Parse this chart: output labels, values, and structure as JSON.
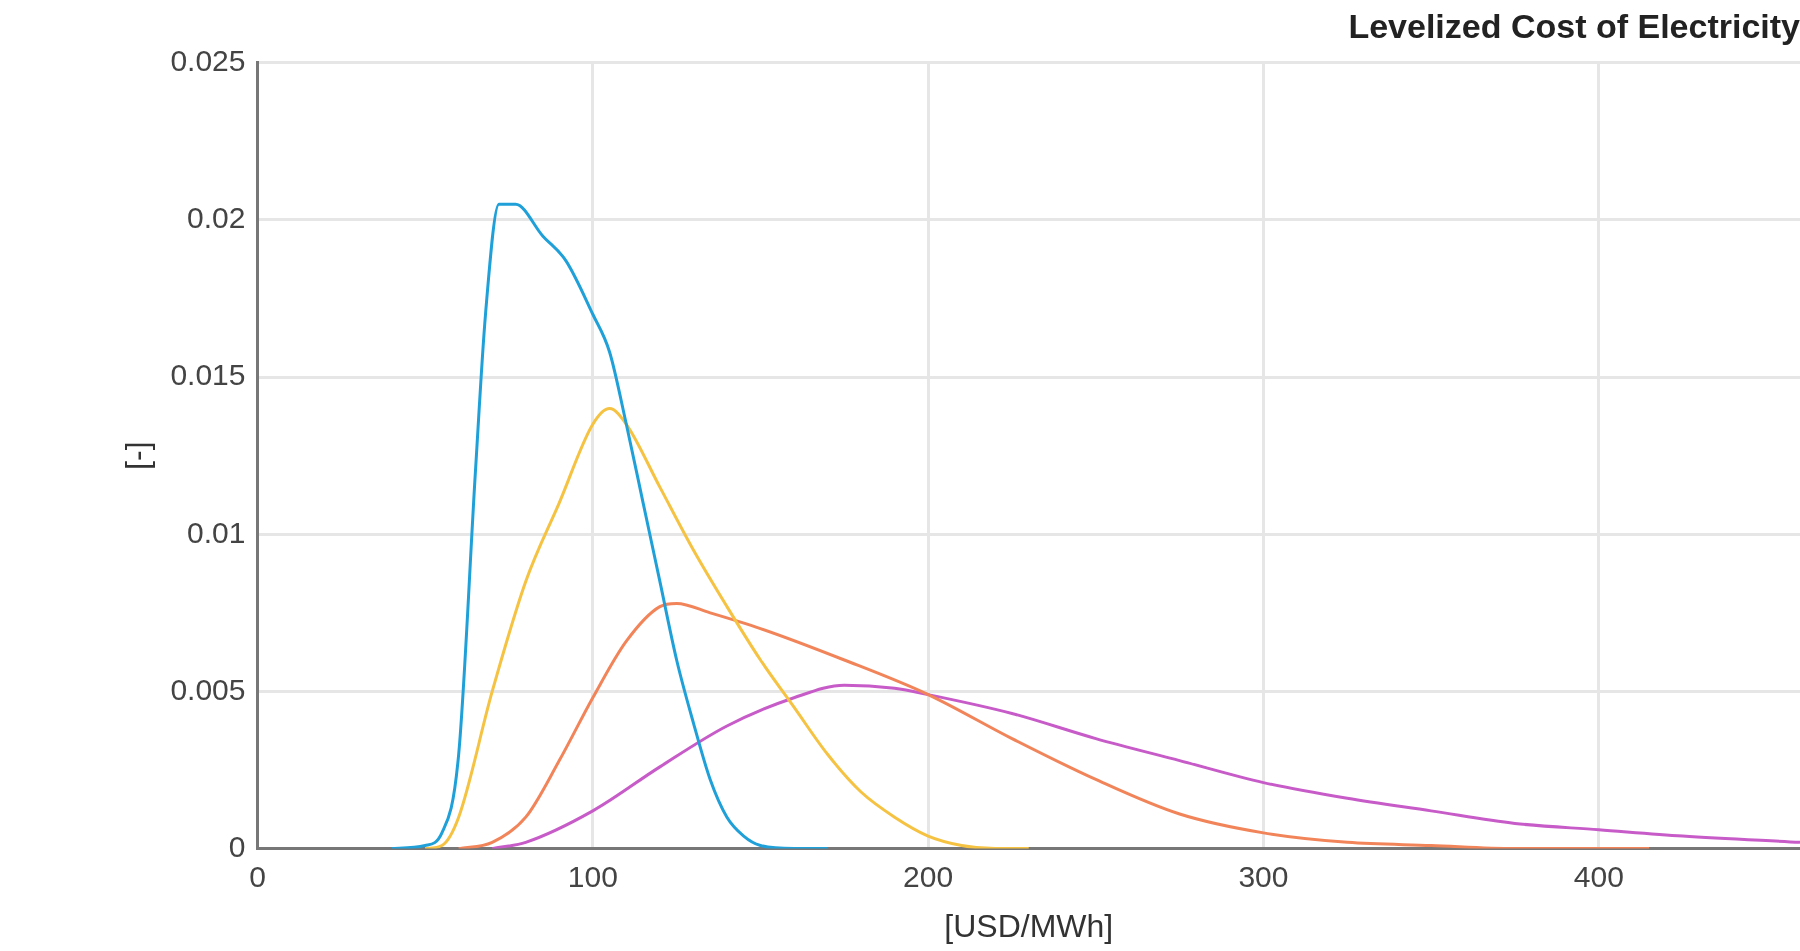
{
  "chart_data": {
    "type": "line",
    "title": "Levelized Cost of Electricity",
    "xlabel": "[USD/MWh]",
    "ylabel": "[-]",
    "xlim": [
      0,
      460
    ],
    "xticks": [
      0,
      100,
      200,
      300,
      400
    ],
    "ylim": [
      0,
      0.025
    ],
    "yticks": [
      0,
      0.005,
      0.01,
      0.015,
      0.02,
      0.025
    ],
    "grid": true,
    "legend": false,
    "marker": "none",
    "line_style": "solid",
    "series": [
      {
        "color": "#1fa0d8",
        "x": [
          40,
          50,
          55,
          60,
          65,
          68,
          72,
          77,
          85,
          92,
          100,
          105,
          110,
          115,
          120,
          125,
          130,
          135,
          140,
          145,
          150,
          160,
          170
        ],
        "values": [
          0,
          0.0001,
          0.0005,
          0.003,
          0.012,
          0.017,
          0.0205,
          0.0205,
          0.0195,
          0.0187,
          0.017,
          0.0158,
          0.0135,
          0.011,
          0.0085,
          0.006,
          0.004,
          0.0022,
          0.001,
          0.0004,
          0.0001,
          0,
          0
        ]
      },
      {
        "color": "#f5c242",
        "x": [
          50,
          55,
          60,
          70,
          80,
          90,
          100,
          105,
          110,
          120,
          130,
          140,
          150,
          160,
          170,
          180,
          190,
          200,
          210,
          220,
          230
        ],
        "values": [
          0,
          0.0001,
          0.001,
          0.005,
          0.0085,
          0.011,
          0.0135,
          0.014,
          0.0135,
          0.0115,
          0.0095,
          0.0077,
          0.006,
          0.0045,
          0.003,
          0.0018,
          0.001,
          0.0004,
          0.0001,
          0,
          0
        ]
      },
      {
        "color": "#f2845a",
        "x": [
          60,
          70,
          80,
          90,
          100,
          110,
          120,
          125,
          135,
          150,
          175,
          200,
          225,
          250,
          275,
          300,
          325,
          350,
          375,
          415
        ],
        "values": [
          0,
          0.0002,
          0.001,
          0.0028,
          0.0048,
          0.0066,
          0.0077,
          0.0078,
          0.0075,
          0.007,
          0.006,
          0.0049,
          0.0035,
          0.0022,
          0.0011,
          0.0005,
          0.0002,
          0.0001,
          0,
          0
        ]
      },
      {
        "color": "#c75bc8",
        "x": [
          70,
          80,
          100,
          120,
          140,
          160,
          175,
          190,
          200,
          225,
          250,
          275,
          300,
          325,
          350,
          375,
          400,
          425,
          460
        ],
        "values": [
          0,
          0.0002,
          0.0012,
          0.0026,
          0.0039,
          0.0048,
          0.0052,
          0.0051,
          0.0049,
          0.0043,
          0.0035,
          0.0028,
          0.0021,
          0.0016,
          0.0012,
          0.0008,
          0.0006,
          0.0004,
          0.0002
        ]
      }
    ]
  }
}
